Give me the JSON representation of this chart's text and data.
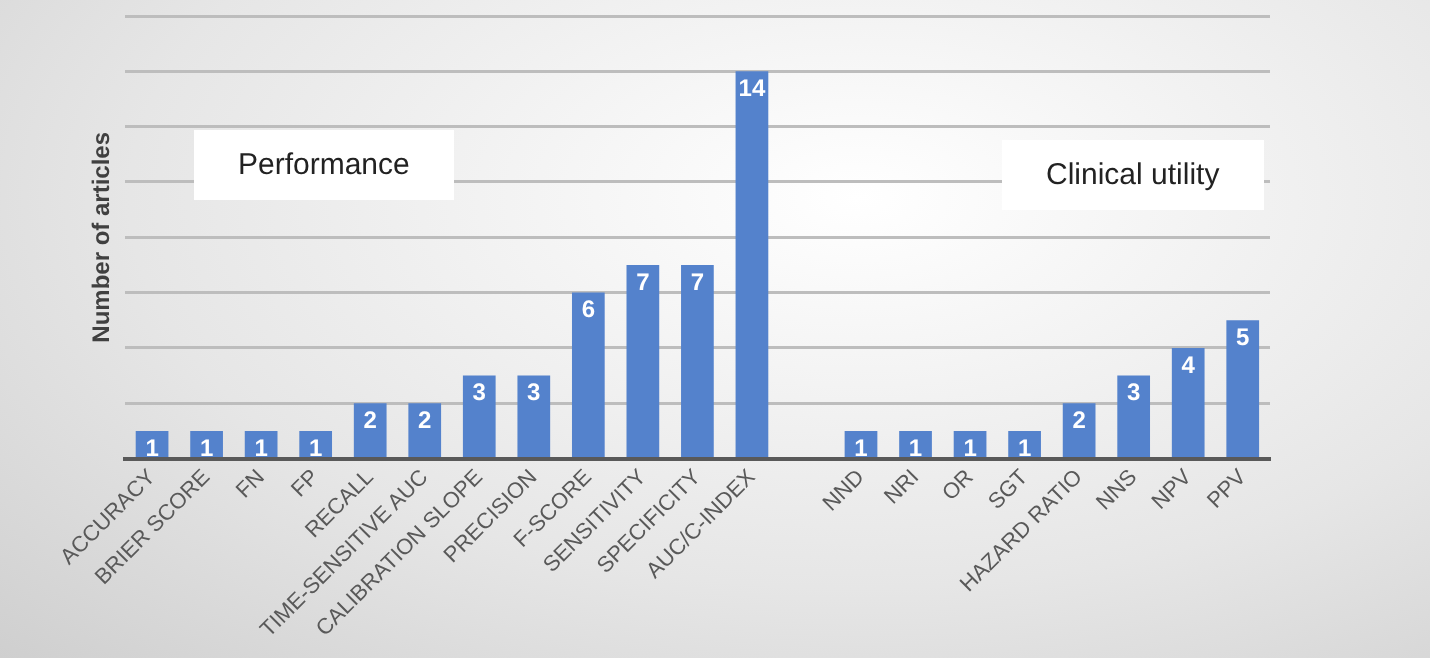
{
  "chart_data": {
    "type": "bar",
    "ylabel": "Number of articles",
    "categories": [
      "ACCURACY",
      "BRIER SCORE",
      "FN",
      "FP",
      "RECALL",
      "TIME-SENSITIVE AUC",
      "CALIBRATION SLOPE",
      "PRECISION",
      "F-SCORE",
      "SENSITIVITY",
      "SPECIFICITY",
      "AUC/C-INDEX",
      null,
      "NND",
      "NRI",
      "OR",
      "SGT",
      "HAZARD RATIO",
      "NNS",
      "NPV",
      "PPV"
    ],
    "values": [
      1,
      1,
      1,
      1,
      2,
      2,
      3,
      3,
      6,
      7,
      7,
      14,
      null,
      1,
      1,
      1,
      1,
      2,
      3,
      4,
      5
    ],
    "color": "#5482cc",
    "ylim": [
      0,
      16
    ],
    "yticks": [
      {
        "value": 0,
        "label": null
      },
      {
        "value": 2,
        "label": null
      },
      {
        "value": 4,
        "label": null
      },
      {
        "value": 6,
        "label": null
      },
      {
        "value": 8,
        "label": null
      },
      {
        "value": 10,
        "label": null
      },
      {
        "value": 12,
        "label": null
      },
      {
        "value": 14,
        "label": null
      },
      {
        "value": 16,
        "label": null
      }
    ],
    "grid": "y",
    "tick_labels": "x",
    "data_labels": true,
    "legend": false,
    "annotations": [
      "Performance",
      "Clinical utility"
    ]
  }
}
